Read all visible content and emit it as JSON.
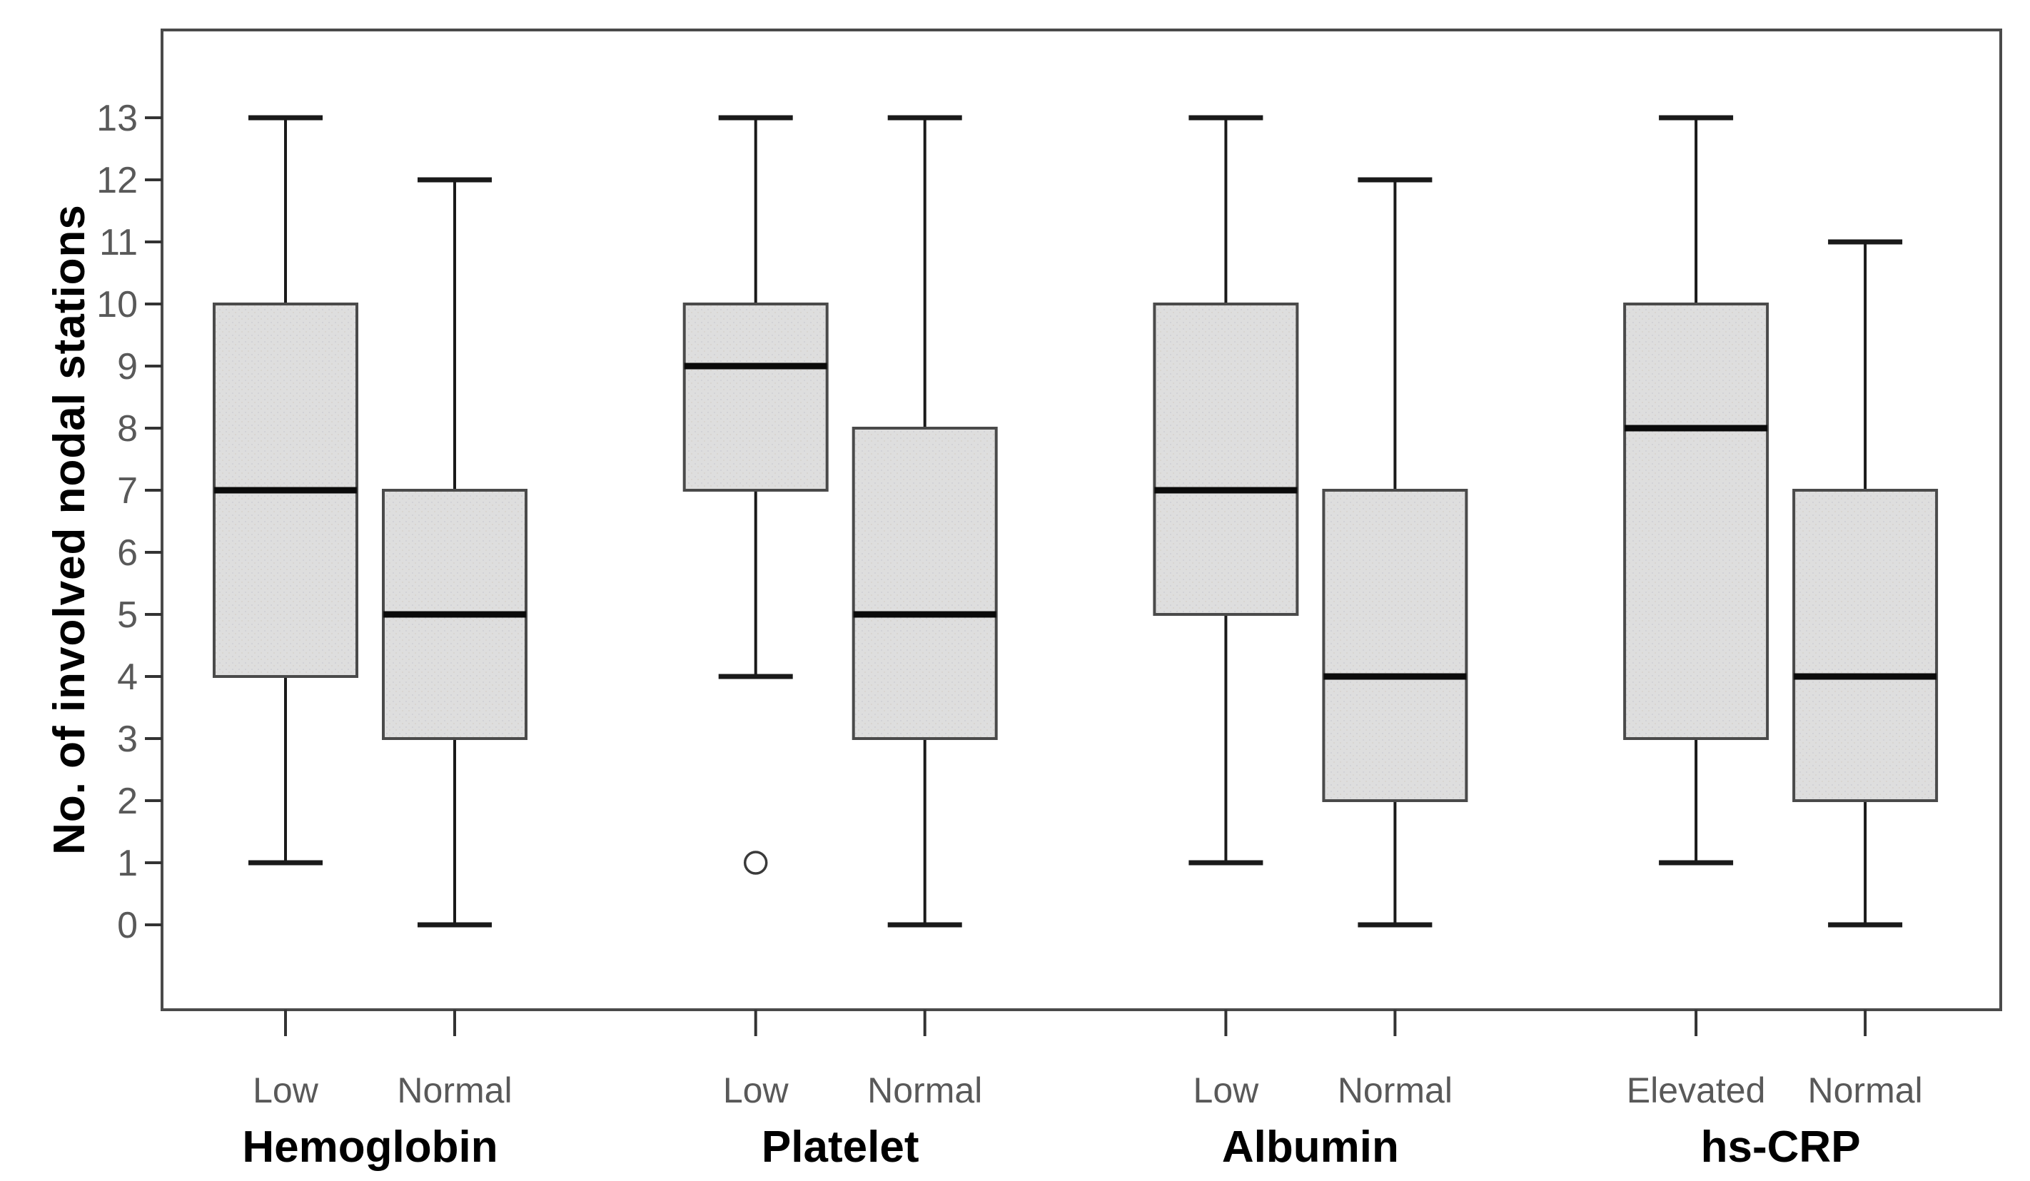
{
  "figure": {
    "background": "#ffffff"
  },
  "chart_data": {
    "type": "boxplot",
    "title": "",
    "xlabel": "",
    "ylabel": "No. of involved nodal stations",
    "ylim": [
      0,
      13
    ],
    "yticks": [
      "0",
      "1",
      "2",
      "3",
      "4",
      "5",
      "6",
      "7",
      "8",
      "9",
      "10",
      "11",
      "12",
      "13"
    ],
    "grid": false,
    "legend": "none",
    "colors": {
      "box_fill": "#dedede",
      "box_border": "#4a4a4a",
      "median": "#0a0a0a",
      "whisker": "#1a1a1a",
      "frame": "#4a4a4a",
      "tick_mark": "#333333",
      "tick_label": "#595959",
      "category_label": "#595959",
      "group_title": "#000000",
      "outlier": "#3a3a3a"
    },
    "groups": [
      {
        "label": "Hemoglobin",
        "categories": [
          {
            "label": "Low",
            "whisker_low": 1,
            "q1": 4,
            "median": 7,
            "q3": 10,
            "whisker_high": 13,
            "outliers": []
          },
          {
            "label": "Normal",
            "whisker_low": 0,
            "q1": 3,
            "median": 5,
            "q3": 7,
            "whisker_high": 12,
            "outliers": []
          }
        ]
      },
      {
        "label": "Platelet",
        "categories": [
          {
            "label": "Low",
            "whisker_low": 4,
            "q1": 7,
            "median": 9,
            "q3": 10,
            "whisker_high": 13,
            "outliers": [
              1
            ]
          },
          {
            "label": "Normal",
            "whisker_low": 0,
            "q1": 3,
            "median": 5,
            "q3": 8,
            "whisker_high": 13,
            "outliers": []
          }
        ]
      },
      {
        "label": "Albumin",
        "categories": [
          {
            "label": "Low",
            "whisker_low": 1,
            "q1": 5,
            "median": 7,
            "q3": 10,
            "whisker_high": 13,
            "outliers": []
          },
          {
            "label": "Normal",
            "whisker_low": 0,
            "q1": 2,
            "median": 4,
            "q3": 7,
            "whisker_high": 12,
            "outliers": []
          }
        ]
      },
      {
        "label": "hs-CRP",
        "categories": [
          {
            "label": "Elevated",
            "whisker_low": 1,
            "q1": 3,
            "median": 8,
            "q3": 10,
            "whisker_high": 13,
            "outliers": []
          },
          {
            "label": "Normal",
            "whisker_low": 0,
            "q1": 2,
            "median": 4,
            "q3": 7,
            "whisker_high": 11,
            "outliers": []
          }
        ]
      }
    ]
  }
}
